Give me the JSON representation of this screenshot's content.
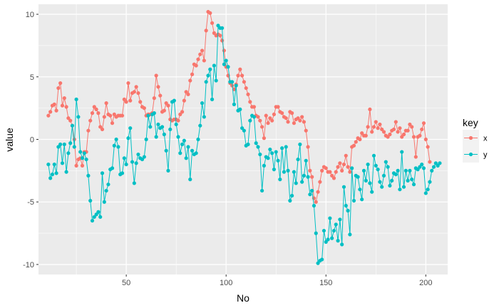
{
  "chart_data": {
    "type": "line",
    "title": "",
    "xlabel": "No",
    "ylabel": "value",
    "xlim": [
      6.05,
      210.95
    ],
    "ylim": [
      -10.8,
      10.8
    ],
    "xticks": [
      50,
      100,
      150,
      200
    ],
    "yticks": [
      -10,
      -5,
      0,
      5,
      10
    ],
    "grid": true,
    "legend": {
      "title": "key",
      "position": "right"
    },
    "x_start": 11,
    "series": [
      {
        "name": "x",
        "color": "#F8766D",
        "values": [
          1.9,
          2.2,
          2.7,
          2.8,
          2.3,
          4.1,
          4.5,
          2.7,
          3.3,
          2.6,
          1.7,
          1.5,
          1.1,
          0.0,
          -2.1,
          -1.6,
          -1.5,
          -2.1,
          -1.0,
          -1.0,
          0.7,
          1.5,
          2.1,
          2.6,
          2.4,
          2.1,
          1.0,
          0.8,
          1.8,
          2.9,
          2.0,
          1.9,
          1.3,
          2.0,
          1.8,
          1.9,
          1.9,
          1.9,
          3.2,
          3.0,
          4.5,
          3.1,
          3.7,
          3.8,
          4.2,
          3.7,
          3.0,
          2.6,
          2.5,
          1.9,
          2.0,
          2.0,
          2.1,
          3.3,
          5.1,
          4.2,
          3.5,
          2.2,
          2.3,
          2.9,
          2.7,
          1.6,
          1.5,
          1.6,
          1.6,
          1.5,
          2.0,
          2.2,
          3.1,
          3.8,
          3.6,
          4.7,
          5.2,
          6.0,
          5.9,
          6.4,
          6.8,
          7.1,
          6.3,
          8.7,
          10.2,
          10.1,
          9.3,
          8.5,
          8.3,
          8.4,
          8.3,
          7.9,
          7.1,
          5.8,
          5.1,
          4.5,
          4.3,
          4.0,
          4.4,
          5.1,
          5.6,
          5.1,
          4.6,
          4.1,
          3.6,
          3.0,
          2.6,
          2.6,
          1.9,
          1.8,
          1.5,
          1.0,
          0.1,
          1.9,
          1.3,
          1.7,
          1.5,
          2.0,
          2.6,
          2.6,
          2.2,
          2.1,
          1.8,
          1.7,
          1.4,
          2.2,
          2.1,
          1.3,
          1.6,
          1.7,
          1.5,
          1.8,
          1.4,
          0.7,
          -0.6,
          -2.5,
          -3.0,
          -4.7,
          -5.0,
          -4.2,
          -3.4,
          -2.5,
          -2.2,
          -2.3,
          -2.6,
          -2.6,
          -2.9,
          -3.1,
          -2.6,
          -2.2,
          -1.9,
          -2.5,
          -2.0,
          -1.3,
          -2.2,
          -2.6,
          -0.6,
          -0.5,
          -0.2,
          0.1,
          0.0,
          0.5,
          0.3,
          0.3,
          1.0,
          2.4,
          0.6,
          1.0,
          1.4,
          0.9,
          1.2,
          0.8,
          0.6,
          0.3,
          0.2,
          0.4,
          0.7,
          0.8,
          1.4,
          0.6,
          0.9,
          0.2,
          0.4,
          0.7,
          0.7,
          1.2,
          1.0,
          0.2,
          -1.4,
          0.2,
          0.3,
          0.8,
          1.3,
          0.0,
          -0.6,
          -1.8
        ],
        "labeled": false
      },
      {
        "name": "y",
        "color": "#00BFC4",
        "values": [
          -2.0,
          -3.1,
          -2.8,
          -2.0,
          -2.7,
          -0.6,
          -0.4,
          -1.9,
          -0.4,
          -2.6,
          -1.1,
          -0.3,
          1.1,
          -0.6,
          3.2,
          1.8,
          -1.0,
          -1.5,
          -1.1,
          -1.6,
          -2.9,
          -4.9,
          -6.5,
          -6.2,
          -6.0,
          -5.8,
          -6.2,
          -2.7,
          -5.0,
          -4.1,
          -3.6,
          -2.4,
          -2.3,
          -0.5,
          0.0,
          -0.6,
          -2.8,
          -2.7,
          -1.5,
          -2.0,
          0.1,
          0.9,
          -1.8,
          -3.5,
          -1.9,
          -1.2,
          -1.5,
          -1.6,
          -1.4,
          0.0,
          1.9,
          1.0,
          2.0,
          2.1,
          0.2,
          1.2,
          0.9,
          1.0,
          0.4,
          -0.9,
          -2.5,
          0.8,
          3.0,
          3.1,
          1.2,
          0.2,
          -1.1,
          -0.4,
          -0.1,
          -1.5,
          -0.6,
          -3.2,
          -0.9,
          -1.2,
          -1.1,
          0.0,
          1.1,
          2.9,
          1.8,
          4.6,
          5.1,
          5.6,
          3.2,
          5.9,
          4.7,
          9.1,
          8.9,
          8.9,
          6.0,
          6.3,
          5.8,
          4.6,
          4.6,
          2.8,
          4.3,
          2.3,
          2.4,
          0.9,
          0.7,
          -0.5,
          -0.4,
          1.5,
          1.9,
          1.8,
          -0.3,
          -0.6,
          -1.2,
          -4.1,
          -2.1,
          -1.4,
          -1.5,
          -0.8,
          -1.1,
          -2.4,
          -1.0,
          -1.7,
          -3.2,
          -0.7,
          -2.6,
          -0.6,
          -2.5,
          -4.9,
          -4.5,
          -2.6,
          -3.5,
          -1.6,
          -0.4,
          -3.4,
          -2.9,
          -1.7,
          -3.0,
          -4.4,
          -4.1,
          -5.3,
          -7.5,
          -9.9,
          -9.7,
          -9.6,
          -7.3,
          -8.2,
          -8.0,
          -6.3,
          -7.9,
          -7.3,
          -6.8,
          -8.1,
          -6.4,
          -8.4,
          -3.8,
          -5.3,
          -5.7,
          -7.6,
          -2.3,
          -4.9,
          -2.9,
          -3.0,
          -4.0,
          -4.8,
          -2.5,
          -3.3,
          -2.0,
          -3.5,
          -4.2,
          -1.3,
          -2.1,
          -2.4,
          -3.4,
          -3.8,
          -2.9,
          -1.8,
          -2.2,
          -3.7,
          -3.3,
          -2.7,
          -2.8,
          -2.5,
          -4.0,
          -1.0,
          -3.8,
          -2.5,
          -3.3,
          -2.5,
          -3.2,
          -3.6,
          -2.3,
          -2.4,
          -2.2,
          -2.0,
          -2.3,
          -4.3,
          -4.0,
          -3.4,
          -2.5,
          -2.2,
          -1.9,
          -2.1,
          -1.9
        ],
        "labeled": false
      }
    ]
  }
}
